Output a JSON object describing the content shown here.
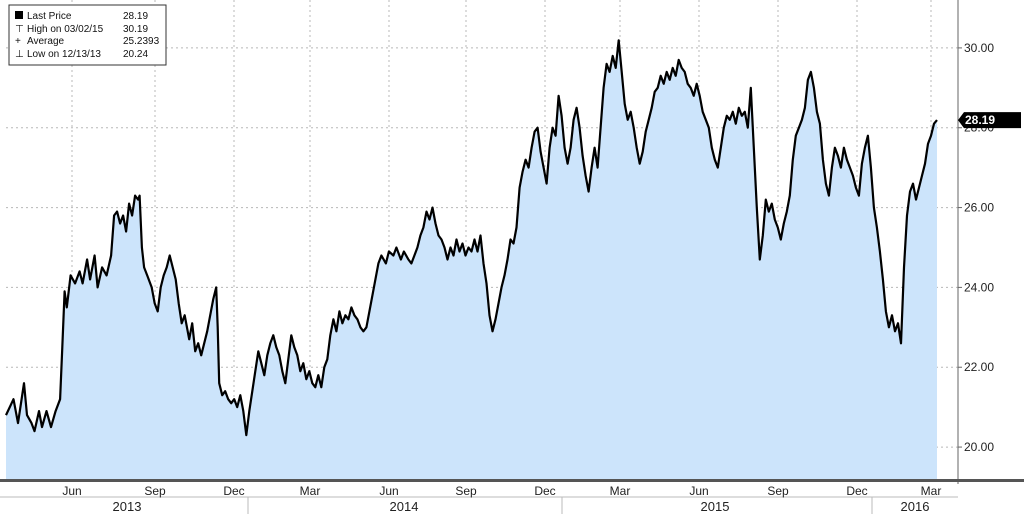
{
  "legend": {
    "last_price_label": "Last Price",
    "last_price_value": "28.19",
    "high_label": "High on 03/02/15",
    "high_value": "30.19",
    "average_label": "Average",
    "average_value": "25.2393",
    "low_label": "Low on 12/13/13",
    "low_value": "20.24"
  },
  "price_tag": "28.19",
  "colors": {
    "fill": "#cce4fb",
    "line": "#000000",
    "grid": "#b8b8b8",
    "tag_bg": "#000000"
  },
  "chart_data": {
    "type": "area",
    "title": "",
    "xlabel": "",
    "ylabel": "",
    "ylim": [
      19.2,
      31.2
    ],
    "yticks": [
      "20.00",
      "22.00",
      "24.00",
      "26.00",
      "28.00",
      "30.00"
    ],
    "x_month_ticks": [
      "Jun",
      "Sep",
      "Dec",
      "Mar",
      "Jun",
      "Sep",
      "Dec",
      "Mar",
      "Jun",
      "Sep",
      "Dec",
      "Mar"
    ],
    "x_years": [
      "2013",
      "2014",
      "2015",
      "2016"
    ],
    "grid": true,
    "legend_position": "top-left",
    "series": [
      {
        "name": "Last Price",
        "points": [
          [
            0.0,
            20.8
          ],
          [
            0.5,
            21.2
          ],
          [
            0.8,
            20.6
          ],
          [
            1.0,
            21.1
          ],
          [
            1.2,
            21.6
          ],
          [
            1.4,
            20.8
          ],
          [
            1.7,
            20.6
          ],
          [
            1.9,
            20.4
          ],
          [
            2.2,
            20.9
          ],
          [
            2.4,
            20.5
          ],
          [
            2.7,
            20.9
          ],
          [
            3.0,
            20.5
          ],
          [
            3.3,
            20.9
          ],
          [
            3.6,
            21.2
          ],
          [
            3.75,
            22.5
          ],
          [
            3.9,
            23.9
          ],
          [
            4.05,
            23.5
          ],
          [
            4.3,
            24.3
          ],
          [
            4.6,
            24.1
          ],
          [
            4.9,
            24.4
          ],
          [
            5.1,
            24.1
          ],
          [
            5.4,
            24.7
          ],
          [
            5.6,
            24.2
          ],
          [
            5.9,
            24.8
          ],
          [
            6.1,
            24.0
          ],
          [
            6.4,
            24.5
          ],
          [
            6.7,
            24.3
          ],
          [
            7.0,
            24.8
          ],
          [
            7.2,
            25.8
          ],
          [
            7.4,
            25.9
          ],
          [
            7.6,
            25.6
          ],
          [
            7.8,
            25.8
          ],
          [
            8.0,
            25.4
          ],
          [
            8.2,
            26.1
          ],
          [
            8.4,
            25.8
          ],
          [
            8.6,
            26.3
          ],
          [
            8.8,
            26.2
          ],
          [
            8.9,
            26.3
          ],
          [
            9.05,
            25.0
          ],
          [
            9.2,
            24.5
          ],
          [
            9.4,
            24.3
          ],
          [
            9.7,
            24.0
          ],
          [
            9.9,
            23.6
          ],
          [
            10.1,
            23.4
          ],
          [
            10.3,
            24.0
          ],
          [
            10.5,
            24.3
          ],
          [
            10.7,
            24.5
          ],
          [
            10.9,
            24.8
          ],
          [
            11.1,
            24.5
          ],
          [
            11.3,
            24.2
          ],
          [
            11.5,
            23.6
          ],
          [
            11.7,
            23.1
          ],
          [
            11.9,
            23.3
          ],
          [
            12.2,
            22.7
          ],
          [
            12.4,
            23.1
          ],
          [
            12.6,
            22.4
          ],
          [
            12.8,
            22.6
          ],
          [
            13.0,
            22.3
          ],
          [
            13.2,
            22.6
          ],
          [
            13.4,
            22.9
          ],
          [
            13.6,
            23.3
          ],
          [
            13.8,
            23.7
          ],
          [
            14.0,
            24.0
          ],
          [
            14.1,
            23.0
          ],
          [
            14.2,
            21.6
          ],
          [
            14.4,
            21.3
          ],
          [
            14.6,
            21.4
          ],
          [
            14.8,
            21.2
          ],
          [
            15.0,
            21.1
          ],
          [
            15.2,
            21.2
          ],
          [
            15.4,
            21.0
          ],
          [
            15.6,
            21.3
          ],
          [
            15.8,
            20.9
          ],
          [
            16.0,
            20.3
          ],
          [
            16.2,
            20.9
          ],
          [
            16.4,
            21.4
          ],
          [
            16.6,
            21.9
          ],
          [
            16.8,
            22.4
          ],
          [
            17.0,
            22.1
          ],
          [
            17.2,
            21.8
          ],
          [
            17.4,
            22.3
          ],
          [
            17.6,
            22.6
          ],
          [
            17.8,
            22.8
          ],
          [
            18.0,
            22.5
          ],
          [
            18.2,
            22.3
          ],
          [
            18.4,
            21.9
          ],
          [
            18.6,
            21.6
          ],
          [
            18.8,
            22.2
          ],
          [
            19.0,
            22.8
          ],
          [
            19.2,
            22.5
          ],
          [
            19.4,
            22.3
          ],
          [
            19.6,
            21.9
          ],
          [
            19.8,
            22.1
          ],
          [
            20.0,
            21.7
          ],
          [
            20.2,
            21.9
          ],
          [
            20.4,
            21.6
          ],
          [
            20.6,
            21.5
          ],
          [
            20.8,
            21.8
          ],
          [
            21.0,
            21.5
          ],
          [
            21.2,
            22.0
          ],
          [
            21.4,
            22.2
          ],
          [
            21.6,
            22.8
          ],
          [
            21.8,
            23.2
          ],
          [
            22.0,
            22.9
          ],
          [
            22.2,
            23.4
          ],
          [
            22.4,
            23.1
          ],
          [
            22.6,
            23.3
          ],
          [
            22.8,
            23.2
          ],
          [
            23.0,
            23.5
          ],
          [
            23.2,
            23.3
          ],
          [
            23.4,
            23.2
          ],
          [
            23.6,
            23.0
          ],
          [
            23.8,
            22.9
          ],
          [
            24.0,
            23.0
          ],
          [
            24.2,
            23.4
          ],
          [
            24.4,
            23.8
          ],
          [
            24.6,
            24.2
          ],
          [
            24.8,
            24.6
          ],
          [
            25.0,
            24.8
          ],
          [
            25.3,
            24.6
          ],
          [
            25.5,
            24.9
          ],
          [
            25.8,
            24.8
          ],
          [
            26.0,
            25.0
          ],
          [
            26.3,
            24.7
          ],
          [
            26.5,
            24.9
          ],
          [
            26.8,
            24.7
          ],
          [
            27.0,
            24.6
          ],
          [
            27.2,
            24.8
          ],
          [
            27.4,
            25.0
          ],
          [
            27.6,
            25.3
          ],
          [
            27.8,
            25.5
          ],
          [
            28.0,
            25.9
          ],
          [
            28.2,
            25.7
          ],
          [
            28.4,
            26.0
          ],
          [
            28.6,
            25.6
          ],
          [
            28.8,
            25.3
          ],
          [
            29.0,
            25.2
          ],
          [
            29.2,
            25.0
          ],
          [
            29.4,
            24.7
          ],
          [
            29.6,
            25.0
          ],
          [
            29.8,
            24.8
          ],
          [
            30.0,
            25.2
          ],
          [
            30.2,
            24.9
          ],
          [
            30.4,
            25.1
          ],
          [
            30.6,
            24.8
          ],
          [
            30.8,
            25.0
          ],
          [
            31.0,
            24.9
          ],
          [
            31.2,
            25.2
          ],
          [
            31.4,
            24.9
          ],
          [
            31.6,
            25.3
          ],
          [
            31.8,
            24.6
          ],
          [
            32.0,
            24.1
          ],
          [
            32.2,
            23.3
          ],
          [
            32.4,
            22.9
          ],
          [
            32.6,
            23.2
          ],
          [
            32.8,
            23.6
          ],
          [
            33.0,
            24.0
          ],
          [
            33.2,
            24.3
          ],
          [
            33.4,
            24.7
          ],
          [
            33.6,
            25.2
          ],
          [
            33.8,
            25.1
          ],
          [
            34.0,
            25.5
          ],
          [
            34.2,
            26.5
          ],
          [
            34.4,
            26.9
          ],
          [
            34.6,
            27.2
          ],
          [
            34.8,
            27.0
          ],
          [
            35.0,
            27.5
          ],
          [
            35.2,
            27.9
          ],
          [
            35.4,
            28.0
          ],
          [
            35.6,
            27.4
          ],
          [
            35.8,
            27.0
          ],
          [
            36.0,
            26.6
          ],
          [
            36.2,
            27.5
          ],
          [
            36.4,
            28.0
          ],
          [
            36.6,
            27.8
          ],
          [
            36.8,
            28.8
          ],
          [
            37.0,
            28.3
          ],
          [
            37.2,
            27.5
          ],
          [
            37.4,
            27.1
          ],
          [
            37.6,
            27.5
          ],
          [
            37.8,
            28.2
          ],
          [
            38.0,
            28.5
          ],
          [
            38.2,
            28.0
          ],
          [
            38.4,
            27.3
          ],
          [
            38.6,
            26.8
          ],
          [
            38.8,
            26.4
          ],
          [
            39.0,
            27.0
          ],
          [
            39.2,
            27.5
          ],
          [
            39.4,
            27.0
          ],
          [
            39.6,
            28.0
          ],
          [
            39.8,
            29.0
          ],
          [
            40.0,
            29.6
          ],
          [
            40.2,
            29.4
          ],
          [
            40.4,
            29.8
          ],
          [
            40.6,
            29.5
          ],
          [
            40.8,
            30.19
          ],
          [
            41.0,
            29.4
          ],
          [
            41.2,
            28.6
          ],
          [
            41.4,
            28.2
          ],
          [
            41.6,
            28.4
          ],
          [
            41.8,
            28.0
          ],
          [
            42.0,
            27.5
          ],
          [
            42.2,
            27.1
          ],
          [
            42.4,
            27.4
          ],
          [
            42.6,
            27.9
          ],
          [
            42.8,
            28.2
          ],
          [
            43.0,
            28.5
          ],
          [
            43.2,
            28.9
          ],
          [
            43.4,
            29.0
          ],
          [
            43.6,
            29.3
          ],
          [
            43.8,
            29.1
          ],
          [
            44.0,
            29.4
          ],
          [
            44.2,
            29.2
          ],
          [
            44.4,
            29.5
          ],
          [
            44.6,
            29.3
          ],
          [
            44.8,
            29.7
          ],
          [
            45.0,
            29.5
          ],
          [
            45.2,
            29.4
          ],
          [
            45.4,
            29.1
          ],
          [
            45.6,
            29.0
          ],
          [
            45.8,
            28.8
          ],
          [
            46.0,
            29.1
          ],
          [
            46.2,
            28.8
          ],
          [
            46.4,
            28.4
          ],
          [
            46.6,
            28.2
          ],
          [
            46.8,
            28.0
          ],
          [
            47.0,
            27.5
          ],
          [
            47.2,
            27.2
          ],
          [
            47.4,
            27.0
          ],
          [
            47.6,
            27.5
          ],
          [
            47.8,
            28.0
          ],
          [
            48.0,
            28.3
          ],
          [
            48.2,
            28.2
          ],
          [
            48.4,
            28.4
          ],
          [
            48.6,
            28.1
          ],
          [
            48.8,
            28.5
          ],
          [
            49.0,
            28.3
          ],
          [
            49.2,
            28.4
          ],
          [
            49.4,
            28.0
          ],
          [
            49.6,
            29.0
          ],
          [
            49.8,
            27.5
          ],
          [
            50.0,
            26.0
          ],
          [
            50.2,
            24.7
          ],
          [
            50.4,
            25.3
          ],
          [
            50.6,
            26.2
          ],
          [
            50.8,
            25.9
          ],
          [
            51.0,
            26.1
          ],
          [
            51.2,
            25.7
          ],
          [
            51.4,
            25.5
          ],
          [
            51.6,
            25.2
          ],
          [
            51.8,
            25.6
          ],
          [
            52.0,
            25.9
          ],
          [
            52.2,
            26.3
          ],
          [
            52.4,
            27.2
          ],
          [
            52.6,
            27.8
          ],
          [
            52.8,
            28.0
          ],
          [
            53.0,
            28.2
          ],
          [
            53.2,
            28.5
          ],
          [
            53.4,
            29.2
          ],
          [
            53.6,
            29.4
          ],
          [
            53.8,
            29.0
          ],
          [
            54.0,
            28.4
          ],
          [
            54.2,
            28.1
          ],
          [
            54.4,
            27.2
          ],
          [
            54.6,
            26.6
          ],
          [
            54.8,
            26.3
          ],
          [
            55.0,
            27.0
          ],
          [
            55.2,
            27.5
          ],
          [
            55.4,
            27.3
          ],
          [
            55.6,
            27.0
          ],
          [
            55.8,
            27.5
          ],
          [
            56.0,
            27.2
          ],
          [
            56.2,
            27.0
          ],
          [
            56.4,
            26.8
          ],
          [
            56.6,
            26.5
          ],
          [
            56.8,
            26.3
          ],
          [
            57.0,
            27.1
          ],
          [
            57.2,
            27.5
          ],
          [
            57.4,
            27.8
          ],
          [
            57.6,
            27.0
          ],
          [
            57.8,
            26.0
          ],
          [
            58.0,
            25.5
          ],
          [
            58.2,
            24.9
          ],
          [
            58.4,
            24.2
          ],
          [
            58.6,
            23.4
          ],
          [
            58.8,
            23.0
          ],
          [
            59.0,
            23.3
          ],
          [
            59.2,
            22.9
          ],
          [
            59.4,
            23.1
          ],
          [
            59.6,
            22.6
          ],
          [
            59.8,
            24.5
          ],
          [
            60.0,
            25.8
          ],
          [
            60.2,
            26.4
          ],
          [
            60.4,
            26.6
          ],
          [
            60.6,
            26.2
          ],
          [
            60.8,
            26.5
          ],
          [
            61.0,
            26.8
          ],
          [
            61.2,
            27.1
          ],
          [
            61.4,
            27.6
          ],
          [
            61.6,
            27.8
          ],
          [
            61.8,
            28.1
          ],
          [
            62.0,
            28.19
          ]
        ]
      }
    ]
  }
}
